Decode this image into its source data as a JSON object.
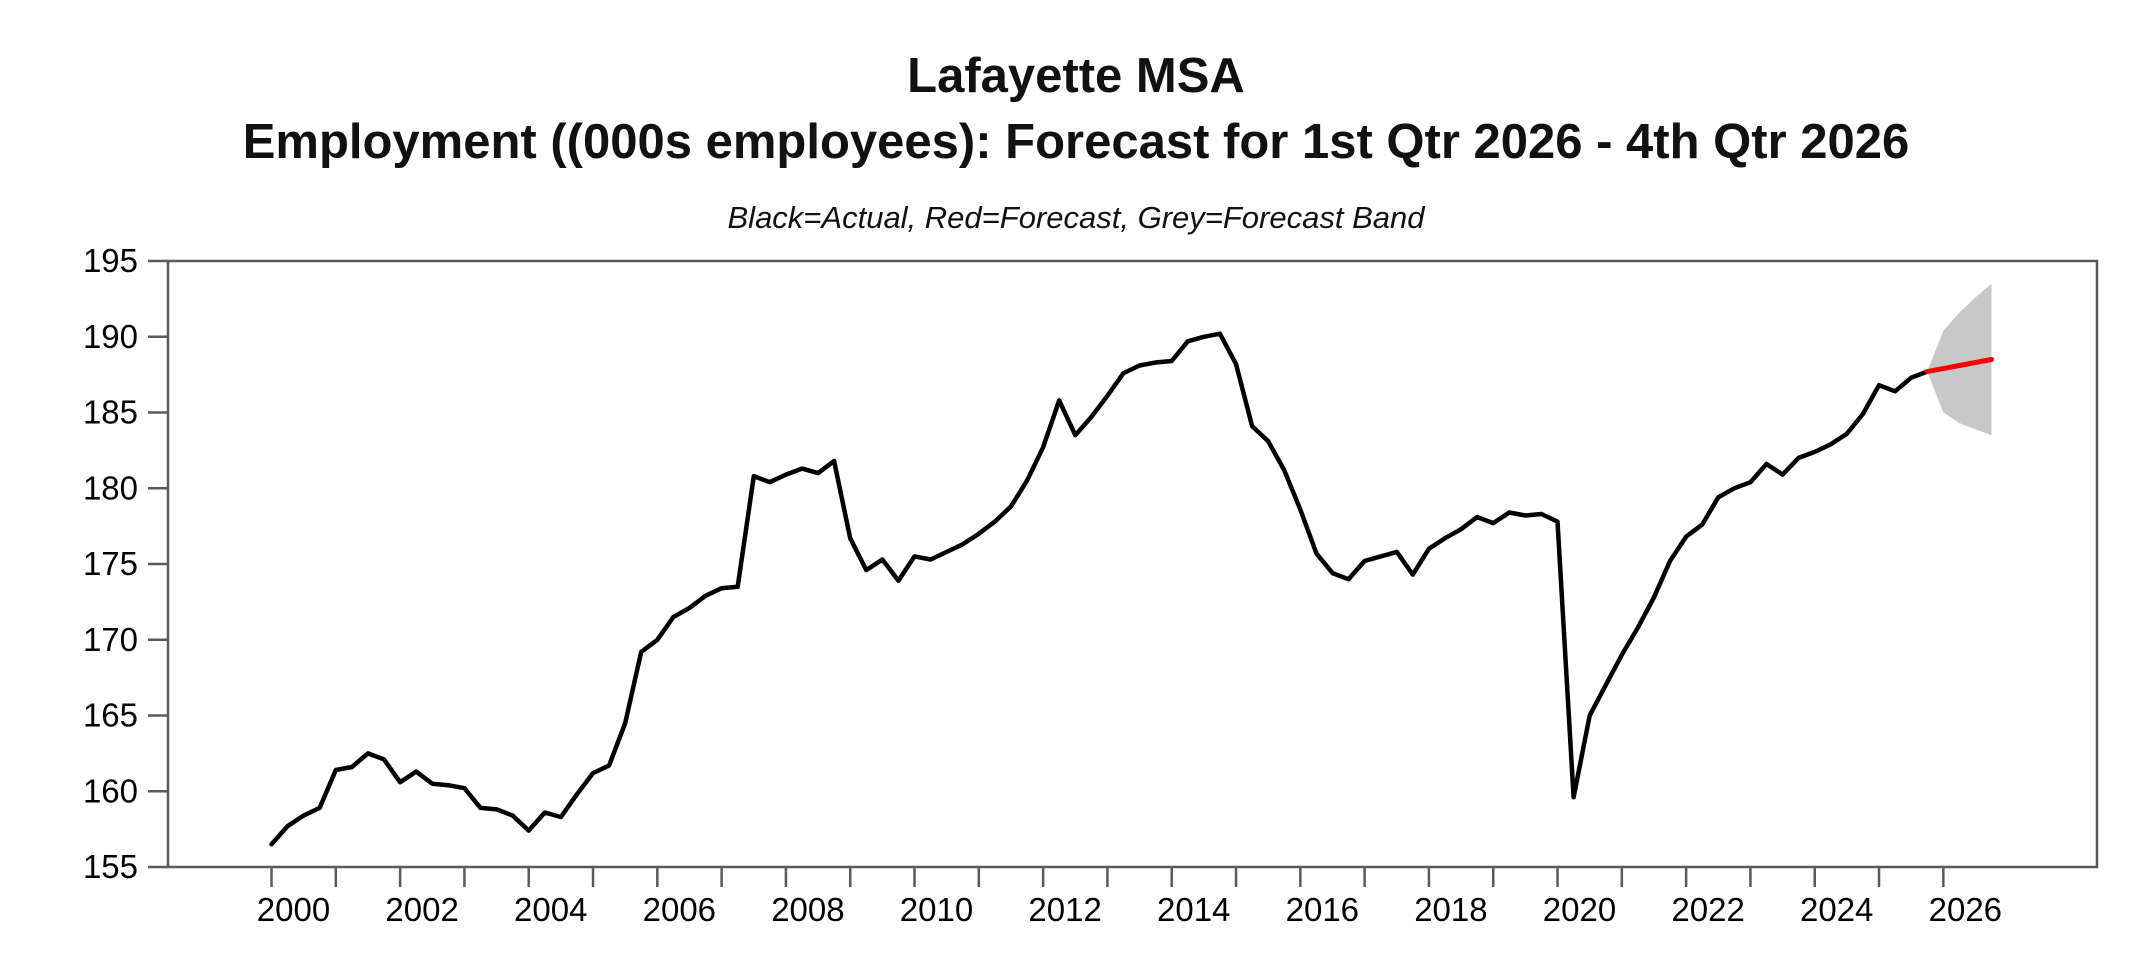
{
  "header": {
    "title_line1": "Lafayette MSA",
    "title_line2": "Employment ((000s employees): Forecast for 1st Qtr 2026 - 4th Qtr 2026",
    "subtitle": "Black=Actual, Red=Forecast, Grey=Forecast Band"
  },
  "colors": {
    "actual": "#000000",
    "forecast": "#ff0000",
    "band": "#c8c8c8",
    "axis": "#5a5a5a",
    "tick_label": "#000000"
  },
  "chart_data": {
    "type": "line",
    "title": "Lafayette MSA Employment ((000s employees): Forecast for 1st Qtr 2026 - 4th Qtr 2026",
    "legend_note": "Black=Actual, Red=Forecast, Grey=Forecast Band",
    "xlabel": "",
    "ylabel": "",
    "xlim": [
      1998.39,
      2028.39
    ],
    "ylim": [
      155,
      195
    ],
    "grid": false,
    "y_ticks": [
      155,
      160,
      165,
      170,
      175,
      180,
      185,
      190,
      195
    ],
    "x_ticks": [
      2000,
      2001,
      2002,
      2003,
      2004,
      2005,
      2006,
      2007,
      2008,
      2009,
      2010,
      2011,
      2012,
      2013,
      2014,
      2015,
      2016,
      2017,
      2018,
      2019,
      2020,
      2021,
      2022,
      2023,
      2024,
      2025,
      2026
    ],
    "x_tick_labels": [
      2000,
      2002,
      2004,
      2006,
      2008,
      2010,
      2012,
      2014,
      2016,
      2018,
      2020,
      2022,
      2024,
      2026
    ],
    "x_unit": "year (quarterly data)",
    "series": [
      {
        "name": "Actual",
        "color_key": "actual",
        "x_start": 2000.0,
        "x_step": 0.25,
        "values": [
          156.5,
          157.7,
          158.4,
          158.9,
          161.4,
          161.6,
          162.5,
          162.1,
          160.6,
          161.3,
          160.5,
          160.4,
          160.2,
          158.9,
          158.8,
          158.4,
          157.4,
          158.6,
          158.3,
          159.8,
          161.2,
          161.7,
          164.5,
          169.2,
          170.0,
          171.5,
          172.1,
          172.9,
          173.4,
          173.5,
          180.8,
          180.4,
          180.9,
          181.3,
          181.0,
          181.8,
          176.7,
          174.6,
          175.3,
          173.9,
          175.5,
          175.3,
          175.8,
          176.3,
          177.0,
          177.8,
          178.8,
          180.5,
          182.7,
          185.8,
          183.5,
          184.7,
          186.1,
          187.6,
          188.1,
          188.3,
          188.4,
          189.7,
          190.0,
          190.2,
          188.2,
          184.1,
          183.1,
          181.2,
          178.6,
          175.7,
          174.4,
          174.0,
          175.2,
          175.5,
          175.8,
          174.3,
          176.0,
          176.7,
          177.3,
          178.1,
          177.7,
          178.4,
          178.2,
          178.3,
          177.8,
          159.6,
          165.0,
          167.0,
          169.0,
          170.8,
          172.8,
          175.2,
          176.8,
          177.6,
          179.4,
          180.0,
          180.4,
          181.6,
          180.9,
          182.0,
          182.4,
          182.9,
          183.6,
          184.9,
          186.8,
          186.4,
          187.3,
          187.7
        ]
      },
      {
        "name": "Forecast",
        "color_key": "forecast",
        "x_start": 2025.75,
        "x_step": 0.25,
        "values": [
          187.7,
          187.9,
          188.1,
          188.3,
          188.5
        ]
      }
    ],
    "band": {
      "name": "Forecast Band",
      "color_key": "band",
      "x_start": 2025.75,
      "x_step": 0.25,
      "upper": [
        187.7,
        190.4,
        191.6,
        192.6,
        193.5
      ],
      "lower": [
        187.7,
        185.0,
        184.3,
        183.9,
        183.5
      ]
    }
  }
}
